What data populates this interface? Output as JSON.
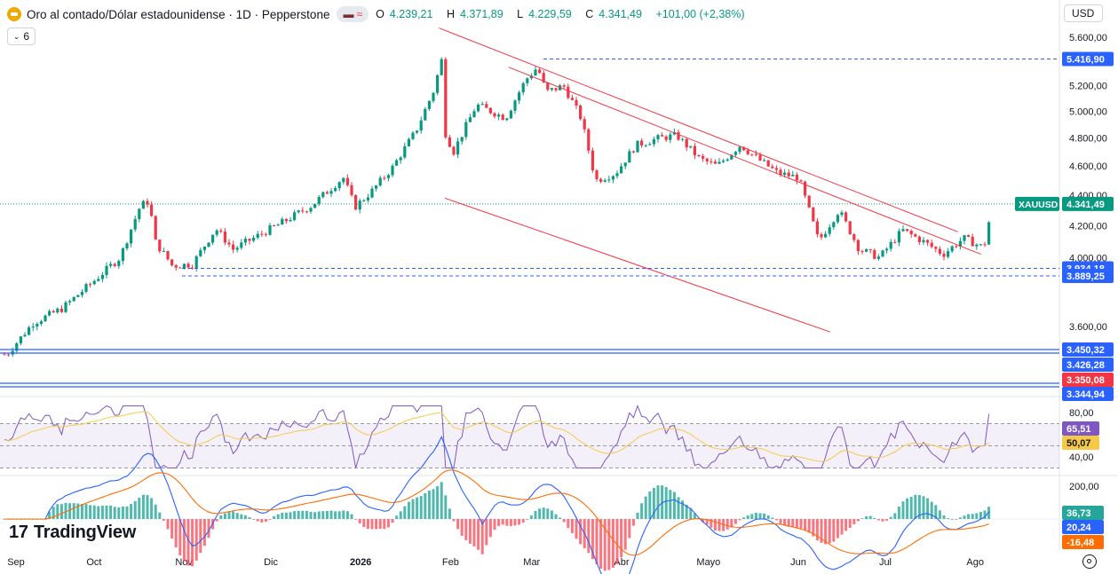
{
  "header": {
    "title": "Oro al contado/Dólar estadounidense · 1D · Pepperstone",
    "open_label": "O",
    "open": "4.239,21",
    "high_label": "H",
    "high": "4.371,89",
    "low_label": "L",
    "low": "4.229,59",
    "close_label": "C",
    "close": "4.341,49",
    "change": "+101,00 (+2,38%)",
    "indicator_count": "6",
    "currency": "USD"
  },
  "brand": "TradingView",
  "colors": {
    "up": "#089981",
    "down": "#f23645",
    "trend": "#f23645",
    "level": "#2962ff",
    "rsi": "#7e57c2",
    "rsi_ma": "#f7c948",
    "macd": "#2962ff",
    "signal": "#ff6d00"
  },
  "chart_data": [
    {
      "type": "candlestick",
      "symbol": "XAUUSD",
      "last_price": "4.341,49",
      "x_ticks": [
        "Sep",
        "Oct",
        "Nov",
        "Dic",
        "2026",
        "Feb",
        "Mar",
        "Abr",
        "Mayo",
        "Jun",
        "Jul",
        "Ago"
      ],
      "y_ticks": [
        "5.600,00",
        "5.200,00",
        "5.000,00",
        "4.800,00",
        "4.600,00",
        "4.400,00",
        "4.200,00",
        "4.000,00",
        "3.600,00"
      ],
      "ylim": [
        3380,
        5700
      ],
      "y_scale": "log",
      "price_path": [
        [
          "2025-09-01",
          3450
        ],
        [
          "2025-09-10",
          3620
        ],
        [
          "2025-09-20",
          3700
        ],
        [
          "2025-10-01",
          3860
        ],
        [
          "2025-10-10",
          4000
        ],
        [
          "2025-10-17",
          4330
        ],
        [
          "2025-10-20",
          4360
        ],
        [
          "2025-10-22",
          4100
        ],
        [
          "2025-10-28",
          3950
        ],
        [
          "2025-11-04",
          3960
        ],
        [
          "2025-11-12",
          4180
        ],
        [
          "2025-11-18",
          4050
        ],
        [
          "2025-11-25",
          4120
        ],
        [
          "2025-12-05",
          4220
        ],
        [
          "2025-12-15",
          4330
        ],
        [
          "2025-12-26",
          4520
        ],
        [
          "2025-12-30",
          4320
        ],
        [
          "2026-01-05",
          4430
        ],
        [
          "2026-01-12",
          4590
        ],
        [
          "2026-01-20",
          4850
        ],
        [
          "2026-01-26",
          5150
        ],
        [
          "2026-01-29",
          5416
        ],
        [
          "2026-01-30",
          4850
        ],
        [
          "2026-02-02",
          4700
        ],
        [
          "2026-02-10",
          5050
        ],
        [
          "2026-02-20",
          4950
        ],
        [
          "2026-02-27",
          5250
        ],
        [
          "2026-03-03",
          5350
        ],
        [
          "2026-03-06",
          5150
        ],
        [
          "2026-03-12",
          5200
        ],
        [
          "2026-03-18",
          4950
        ],
        [
          "2026-03-23",
          4500
        ],
        [
          "2026-03-30",
          4550
        ],
        [
          "2026-04-06",
          4750
        ],
        [
          "2026-04-14",
          4800
        ],
        [
          "2026-04-20",
          4820
        ],
        [
          "2026-04-28",
          4650
        ],
        [
          "2026-05-04",
          4600
        ],
        [
          "2026-05-12",
          4750
        ],
        [
          "2026-05-18",
          4650
        ],
        [
          "2026-05-25",
          4550
        ],
        [
          "2026-06-01",
          4520
        ],
        [
          "2026-06-08",
          4100
        ],
        [
          "2026-06-15",
          4300
        ],
        [
          "2026-06-22",
          4050
        ],
        [
          "2026-06-29",
          4000
        ],
        [
          "2026-07-07",
          4170
        ],
        [
          "2026-07-14",
          4100
        ],
        [
          "2026-07-21",
          4020
        ],
        [
          "2026-07-28",
          4120
        ],
        [
          "2026-08-04",
          4060
        ],
        [
          "2026-08-07",
          4341
        ]
      ],
      "levels": [
        {
          "value": "5.416,90",
          "style": "dashed"
        },
        {
          "value": "3.934,18",
          "style": "dashed"
        },
        {
          "value": "3.889,25",
          "style": "dashed"
        },
        {
          "value": "3.450,32",
          "style": "solid"
        },
        {
          "value": "3.426,28",
          "style": "solid"
        },
        {
          "value": "3.350,08",
          "style": "solid",
          "color": "#f23645"
        },
        {
          "value": "3.344,94",
          "style": "solid"
        }
      ],
      "trendlines": [
        {
          "from": [
            "2026-01-28",
            5680
          ],
          "to": [
            "2026-07-26",
            4160
          ]
        },
        {
          "from": [
            "2026-02-21",
            5350
          ],
          "to": [
            "2026-08-03",
            4020
          ]
        },
        {
          "from": [
            "2026-01-30",
            4380
          ],
          "to": [
            "2026-06-12",
            3570
          ]
        }
      ]
    },
    {
      "type": "line",
      "name": "RSI",
      "y_ticks": [
        "80,00",
        "40,00"
      ],
      "ylim": [
        28,
        88
      ],
      "bands": [
        70,
        50,
        30
      ],
      "values_labels": [
        "65,51",
        "50,07"
      ]
    },
    {
      "type": "line+bar",
      "name": "MACD",
      "y_ticks": [
        "200,00"
      ],
      "values_labels": [
        "36,73",
        "20,24",
        "-16,48"
      ]
    }
  ]
}
